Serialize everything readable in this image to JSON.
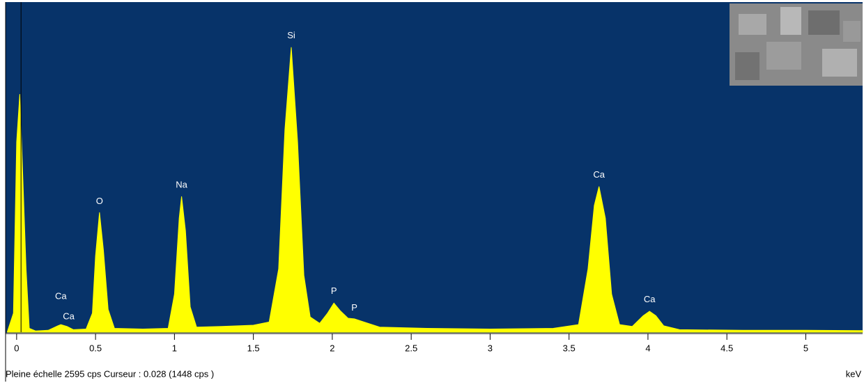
{
  "chart_data": {
    "type": "area",
    "x": [
      -0.06,
      -0.02,
      0.0,
      0.02,
      0.04,
      0.06,
      0.08,
      0.12,
      0.2,
      0.26,
      0.28,
      0.32,
      0.36,
      0.44,
      0.48,
      0.5,
      0.525,
      0.55,
      0.58,
      0.62,
      0.8,
      0.96,
      1.0,
      1.03,
      1.045,
      1.07,
      1.1,
      1.14,
      1.3,
      1.5,
      1.6,
      1.66,
      1.7,
      1.74,
      1.78,
      1.82,
      1.86,
      1.92,
      1.97,
      2.01,
      2.05,
      2.1,
      2.14,
      2.2,
      2.3,
      2.6,
      3.0,
      3.4,
      3.56,
      3.62,
      3.66,
      3.69,
      3.73,
      3.77,
      3.82,
      3.9,
      3.97,
      4.01,
      4.05,
      4.1,
      4.2,
      4.6,
      5.0,
      5.36
    ],
    "values": [
      0,
      150,
      1500,
      1880,
      1200,
      500,
      30,
      10,
      15,
      50,
      60,
      45,
      20,
      25,
      150,
      600,
      946,
      650,
      180,
      30,
      25,
      30,
      300,
      900,
      1072,
      800,
      200,
      40,
      45,
      55,
      80,
      500,
      1600,
      2250,
      1500,
      450,
      120,
      70,
      150,
      230,
      170,
      110,
      105,
      80,
      40,
      30,
      25,
      30,
      60,
      500,
      1000,
      1150,
      900,
      300,
      60,
      45,
      130,
      165,
      130,
      50,
      20,
      15,
      15,
      12
    ],
    "color": "#ffff00",
    "background": "#073369",
    "xlim": [
      -0.07,
      5.36
    ],
    "ylim": [
      0,
      2595
    ],
    "xticks": [
      0,
      0.5,
      1,
      1.5,
      2,
      2.5,
      3,
      3.5,
      4,
      4.5,
      5
    ],
    "x_label": "keV",
    "cursor_x": 0.028,
    "status": "Pleine échelle 2595 cps  Curseur : 0.028  (1448 cps )",
    "annotations": [
      {
        "text": "Ca",
        "x": 0.28,
        "y": 280
      },
      {
        "text": "Ca",
        "x": 0.33,
        "y": 120
      },
      {
        "text": "O",
        "x": 0.525,
        "y": 1030
      },
      {
        "text": "Na",
        "x": 1.045,
        "y": 1160
      },
      {
        "text": "Si",
        "x": 1.74,
        "y": 2340
      },
      {
        "text": "P",
        "x": 2.01,
        "y": 320
      },
      {
        "text": "P",
        "x": 2.14,
        "y": 190
      },
      {
        "text": "Ca",
        "x": 3.69,
        "y": 1240
      },
      {
        "text": "Ca",
        "x": 4.01,
        "y": 255
      }
    ]
  }
}
